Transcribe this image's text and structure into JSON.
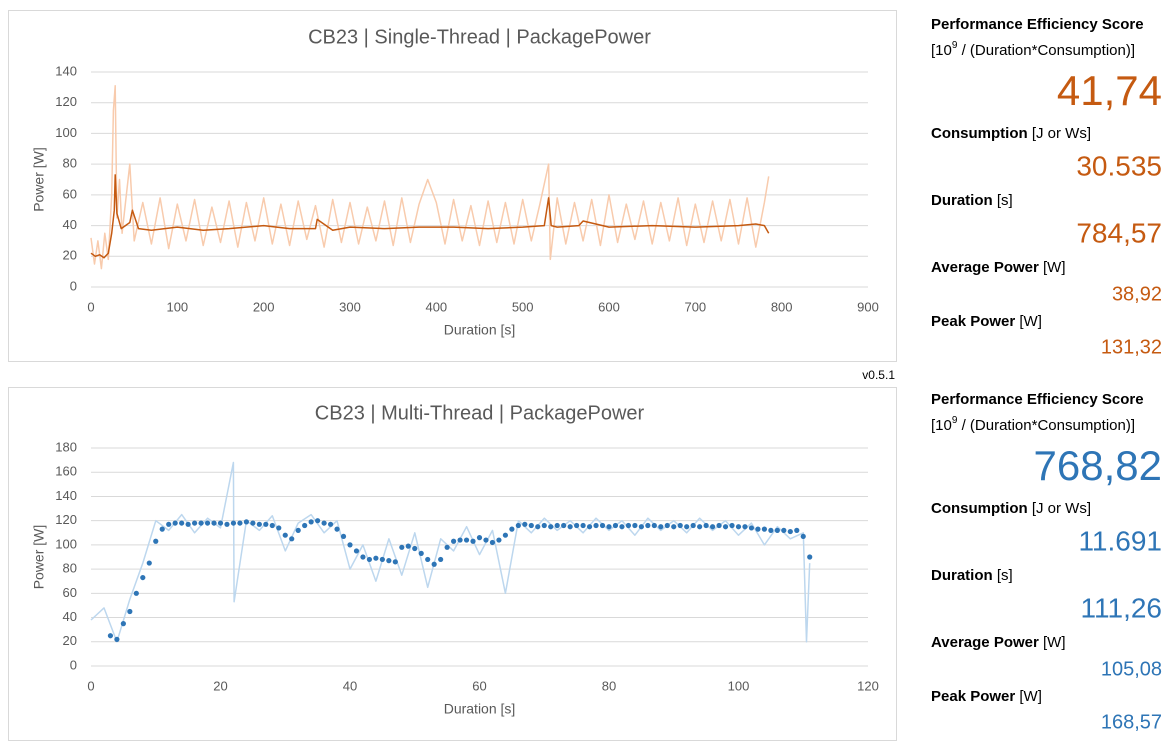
{
  "chart_data": [
    {
      "type": "line",
      "title": "CB23 | Single-Thread | PackagePower",
      "x_label": "Duration [s]",
      "y_label": "Power [W]",
      "xlim": [
        0,
        900
      ],
      "xticks": [
        0,
        100,
        200,
        300,
        400,
        500,
        600,
        700,
        800,
        900
      ],
      "ylim": [
        0,
        140
      ],
      "yticks": [
        0,
        20,
        40,
        60,
        80,
        100,
        120,
        140
      ],
      "grid": true,
      "series": [
        {
          "style": "line",
          "color": "#f8cbad",
          "x": [
            0,
            4,
            8,
            12,
            16,
            20,
            24,
            26,
            28,
            30,
            33,
            36,
            40,
            45,
            50,
            60,
            70,
            80,
            90,
            100,
            110,
            120,
            130,
            140,
            150,
            160,
            170,
            180,
            190,
            200,
            210,
            220,
            230,
            240,
            250,
            260,
            270,
            280,
            290,
            300,
            310,
            320,
            330,
            340,
            350,
            360,
            370,
            380,
            390,
            400,
            410,
            420,
            430,
            440,
            450,
            460,
            470,
            480,
            490,
            500,
            510,
            520,
            530,
            532,
            540,
            550,
            560,
            570,
            580,
            590,
            600,
            610,
            620,
            630,
            640,
            650,
            660,
            670,
            680,
            690,
            700,
            710,
            720,
            730,
            740,
            750,
            760,
            770,
            780,
            785
          ],
          "values": [
            32,
            15,
            30,
            12,
            35,
            18,
            60,
            115,
            131,
            45,
            70,
            35,
            55,
            80,
            30,
            55,
            28,
            58,
            25,
            54,
            30,
            57,
            27,
            52,
            29,
            56,
            26,
            55,
            30,
            58,
            28,
            54,
            27,
            56,
            31,
            53,
            26,
            57,
            29,
            55,
            28,
            52,
            30,
            56,
            27,
            58,
            29,
            54,
            70,
            55,
            28,
            57,
            30,
            53,
            27,
            56,
            29,
            55,
            28,
            57,
            30,
            54,
            80,
            18,
            58,
            28,
            55,
            30,
            57,
            27,
            60,
            29,
            54,
            31,
            56,
            28,
            55,
            30,
            58,
            27,
            54,
            29,
            56,
            30,
            57,
            28,
            58,
            26,
            55,
            72
          ]
        },
        {
          "style": "line",
          "color": "#c55a11",
          "x": [
            0,
            5,
            10,
            15,
            20,
            24,
            27,
            28,
            30,
            35,
            45,
            48,
            55,
            70,
            100,
            130,
            160,
            200,
            230,
            260,
            262,
            280,
            300,
            340,
            380,
            420,
            460,
            500,
            525,
            530,
            533,
            540,
            565,
            570,
            600,
            650,
            700,
            750,
            770,
            780,
            785
          ],
          "values": [
            22,
            20,
            21,
            19,
            22,
            35,
            50,
            73,
            48,
            38,
            42,
            50,
            38,
            37,
            39,
            37,
            38,
            40,
            38,
            38,
            44,
            37,
            39,
            38,
            39,
            39,
            38,
            39,
            40,
            58,
            40,
            39,
            40,
            43,
            39,
            40,
            39,
            40,
            41,
            40,
            35
          ]
        }
      ]
    },
    {
      "type": "line",
      "title": "CB23 | Multi-Thread | PackagePower",
      "x_label": "Duration [s]",
      "y_label": "Power [W]",
      "xlim": [
        0,
        120
      ],
      "xticks": [
        0,
        20,
        40,
        60,
        80,
        100,
        120
      ],
      "ylim": [
        0,
        180
      ],
      "yticks": [
        0,
        20,
        40,
        60,
        80,
        100,
        120,
        140,
        160,
        180
      ],
      "grid": true,
      "series": [
        {
          "style": "line",
          "color": "#bdd7ee",
          "x": [
            0,
            2,
            4,
            6,
            8,
            10,
            12,
            14,
            16,
            18,
            20,
            22,
            22.1,
            24,
            26,
            28,
            30,
            32,
            34,
            36,
            38,
            40,
            42,
            44,
            46,
            48,
            50,
            52,
            54,
            56,
            58,
            60,
            62,
            64,
            66,
            68,
            70,
            72,
            74,
            76,
            78,
            80,
            82,
            84,
            86,
            88,
            90,
            92,
            94,
            96,
            98,
            100,
            102,
            104,
            106,
            108,
            110,
            110.5,
            111
          ],
          "values": [
            38,
            48,
            20,
            55,
            85,
            120,
            112,
            125,
            110,
            122,
            114,
            168,
            53,
            120,
            112,
            124,
            95,
            118,
            125,
            110,
            120,
            80,
            100,
            70,
            105,
            75,
            110,
            65,
            105,
            95,
            115,
            92,
            112,
            60,
            120,
            110,
            122,
            112,
            120,
            110,
            122,
            112,
            120,
            108,
            122,
            112,
            120,
            110,
            122,
            112,
            120,
            108,
            118,
            100,
            115,
            105,
            110,
            20,
            85
          ]
        },
        {
          "style": "dots",
          "color": "#2e75b6",
          "x": [
            3,
            4,
            5,
            6,
            7,
            8,
            9,
            10,
            11,
            12,
            13,
            14,
            15,
            16,
            17,
            18,
            19,
            20,
            21,
            22,
            23,
            24,
            25,
            26,
            27,
            28,
            29,
            30,
            31,
            32,
            33,
            34,
            35,
            36,
            37,
            38,
            39,
            40,
            41,
            42,
            43,
            44,
            45,
            46,
            47,
            48,
            49,
            50,
            51,
            52,
            53,
            54,
            55,
            56,
            57,
            58,
            59,
            60,
            61,
            62,
            63,
            64,
            65,
            66,
            67,
            68,
            69,
            70,
            71,
            72,
            73,
            74,
            75,
            76,
            77,
            78,
            79,
            80,
            81,
            82,
            83,
            84,
            85,
            86,
            87,
            88,
            89,
            90,
            91,
            92,
            93,
            94,
            95,
            96,
            97,
            98,
            99,
            100,
            101,
            102,
            103,
            104,
            105,
            106,
            107,
            108,
            109,
            110,
            111
          ],
          "values": [
            25,
            22,
            35,
            45,
            60,
            73,
            85,
            103,
            113,
            117,
            118,
            118,
            117,
            118,
            118,
            118,
            118,
            118,
            117,
            118,
            118,
            119,
            118,
            117,
            117,
            116,
            114,
            108,
            105,
            112,
            116,
            119,
            120,
            118,
            117,
            113,
            107,
            100,
            95,
            90,
            88,
            89,
            88,
            87,
            86,
            98,
            99,
            97,
            93,
            88,
            84,
            88,
            98,
            103,
            104,
            104,
            103,
            106,
            104,
            102,
            104,
            108,
            113,
            116,
            117,
            116,
            115,
            116,
            115,
            116,
            116,
            115,
            116,
            116,
            115,
            116,
            116,
            115,
            116,
            115,
            116,
            116,
            115,
            116,
            116,
            115,
            116,
            115,
            116,
            115,
            116,
            115,
            116,
            115,
            116,
            115,
            116,
            115,
            115,
            114,
            113,
            113,
            112,
            112,
            112,
            111,
            112,
            107,
            90
          ]
        }
      ]
    }
  ],
  "version": "v0.5.1",
  "panels": [
    {
      "color": "#c55a11",
      "score_label": "Performance Efficiency Score",
      "unit_pre": "[10",
      "unit_sup": "9",
      "unit_post": " / (Duration*Consumption)]",
      "score": "41,74",
      "consumption_label": "Consumption",
      "consumption_unit": "[J or Ws]",
      "consumption": "30.535",
      "duration_label": "Duration",
      "duration_unit": "[s]",
      "duration": "784,57",
      "avg_label": "Average Power",
      "avg_unit": "[W]",
      "avg": "38,92",
      "peak_label": "Peak Power",
      "peak_unit": "[W]",
      "peak": "131,32"
    },
    {
      "color": "#2e75b6",
      "score_label": "Performance Efficiency Score",
      "unit_pre": "[10",
      "unit_sup": "9",
      "unit_post": " / (Duration*Consumption)]",
      "score": "768,82",
      "consumption_label": "Consumption",
      "consumption_unit": "[J or Ws]",
      "consumption": "11.691",
      "duration_label": "Duration",
      "duration_unit": "[s]",
      "duration": "111,26",
      "avg_label": "Average Power",
      "avg_unit": "[W]",
      "avg": "105,08",
      "peak_label": "Peak Power",
      "peak_unit": "[W]",
      "peak": "168,57"
    }
  ]
}
